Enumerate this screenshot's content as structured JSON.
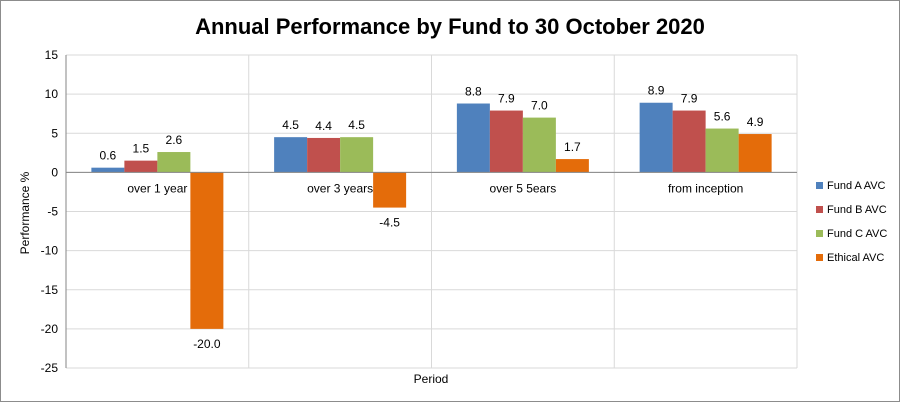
{
  "chart_data": {
    "type": "bar",
    "title": "Annual Performance by Fund to 30 October 2020",
    "xlabel": "Period",
    "ylabel": "Performance %",
    "ylim": [
      -25,
      15
    ],
    "y_ticks": [
      15,
      10,
      5,
      0,
      -5,
      -10,
      -15,
      -20,
      -25
    ],
    "grid": true,
    "legend_position": "right",
    "categories": [
      "over 1 year",
      "over 3 years",
      "over 5 5ears",
      "from inception"
    ],
    "series": [
      {
        "name": "Fund A AVC",
        "color": "#4f81bd",
        "values": [
          0.6,
          4.5,
          8.8,
          8.9
        ],
        "labels": [
          "0.6",
          "4.5",
          "8.8",
          "8.9"
        ]
      },
      {
        "name": "Fund B AVC",
        "color": "#c0504d",
        "values": [
          1.5,
          4.4,
          7.9,
          7.9
        ],
        "labels": [
          "1.5",
          "4.4",
          "7.9",
          "7.9"
        ]
      },
      {
        "name": "Fund C AVC",
        "color": "#9bbb59",
        "values": [
          2.6,
          4.5,
          7.0,
          5.6
        ],
        "labels": [
          "2.6",
          "4.5",
          "7.0",
          "5.6"
        ]
      },
      {
        "name": "Ethical AVC",
        "color": "#e46c0a",
        "values": [
          -20.0,
          -4.5,
          1.7,
          4.9
        ],
        "labels": [
          "-20.0",
          "-4.5",
          "1.7",
          "4.9"
        ]
      }
    ]
  }
}
